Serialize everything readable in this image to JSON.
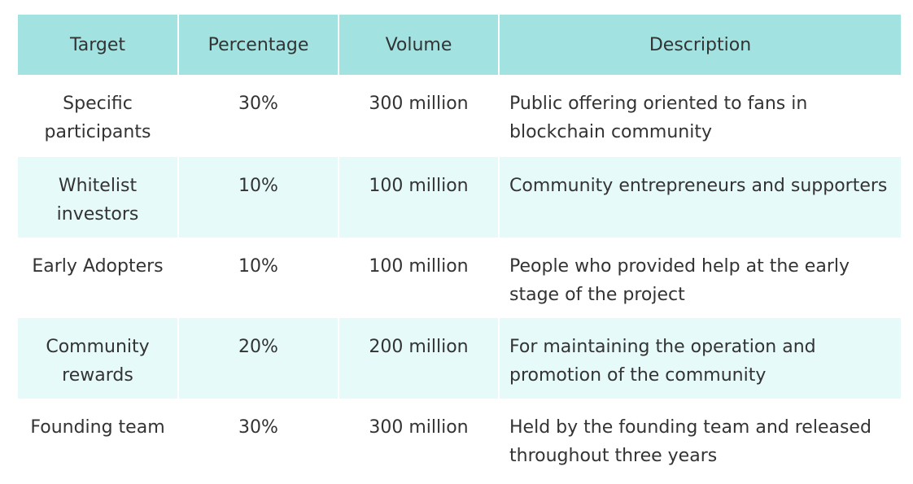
{
  "table": {
    "headers": [
      "Target",
      "Percentage",
      "Volume",
      "Description"
    ],
    "rows": [
      {
        "target": "Specific participants",
        "percentage": "30%",
        "volume": "300 million",
        "description": "Public offering oriented to fans in blockchain community"
      },
      {
        "target": "Whitelist investors",
        "percentage": "10%",
        "volume": "100 million",
        "description": "Community entrepreneurs and supporters"
      },
      {
        "target": "Early Adopters",
        "percentage": "10%",
        "volume": "100 million",
        "description": "People who provided help at the early stage of the project"
      },
      {
        "target": "Community rewards",
        "percentage": "20%",
        "volume": "200 million",
        "description": "For maintaining the operation and promotion of the community"
      },
      {
        "target": "Founding team",
        "percentage": "30%",
        "volume": "300 million",
        "description": "Held by the founding team and released throughout three years"
      }
    ],
    "colors": {
      "header_bg": "#a2e3e1",
      "stripe_bg": "#e6fafa",
      "text": "#333333"
    }
  }
}
